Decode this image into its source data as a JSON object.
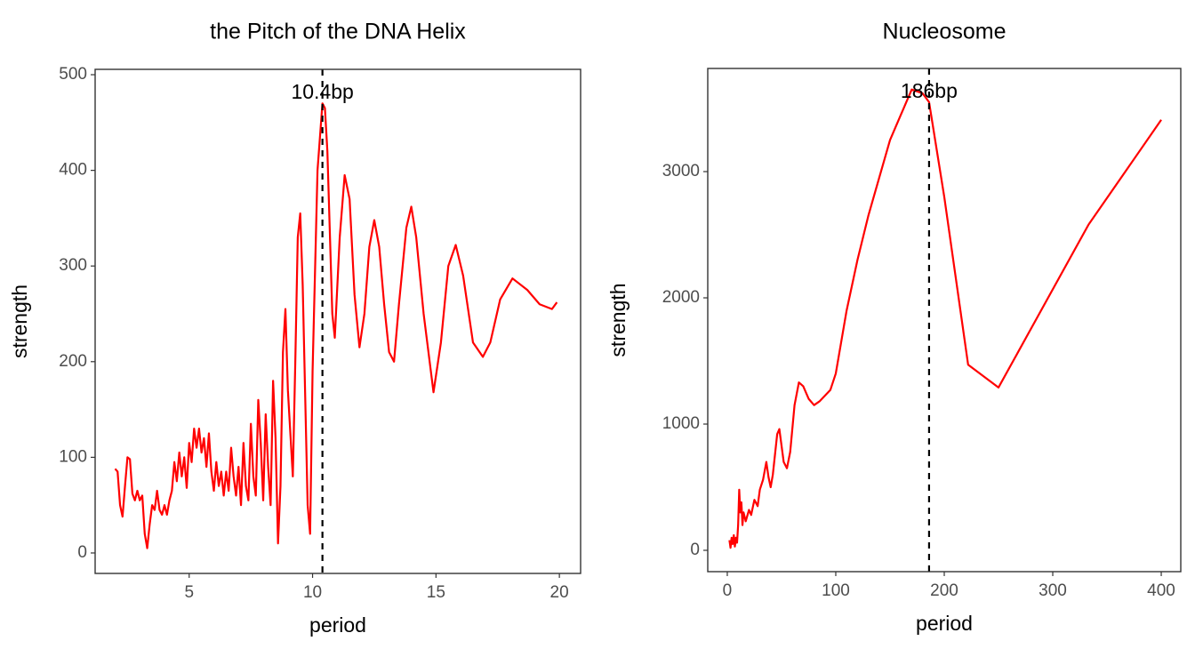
{
  "chart_data": [
    {
      "type": "line",
      "title": "the Pitch of the DNA Helix",
      "x_label": "period",
      "y_label": "strength",
      "xlim": [
        1.19,
        20.86
      ],
      "ylim": [
        -21.4,
        505.6
      ],
      "xticks": [
        5,
        10,
        15,
        20
      ],
      "yticks": [
        0,
        100,
        200,
        300,
        400,
        500
      ],
      "vline": 10.4,
      "annotation": "10.4bp",
      "series": [
        {
          "color": "#ff0000",
          "x": [
            2.0,
            2.1,
            2.2,
            2.3,
            2.4,
            2.5,
            2.6,
            2.7,
            2.8,
            2.9,
            3.0,
            3.1,
            3.2,
            3.3,
            3.4,
            3.5,
            3.6,
            3.7,
            3.8,
            3.9,
            4.0,
            4.1,
            4.2,
            4.3,
            4.4,
            4.5,
            4.6,
            4.7,
            4.8,
            4.9,
            5.0,
            5.1,
            5.2,
            5.3,
            5.4,
            5.5,
            5.6,
            5.7,
            5.8,
            5.9,
            6.0,
            6.1,
            6.2,
            6.3,
            6.4,
            6.5,
            6.6,
            6.7,
            6.8,
            6.9,
            7.0,
            7.1,
            7.2,
            7.3,
            7.4,
            7.5,
            7.6,
            7.7,
            7.8,
            7.9,
            8.0,
            8.1,
            8.2,
            8.3,
            8.4,
            8.5,
            8.6,
            8.7,
            8.8,
            8.9,
            9.0,
            9.2,
            9.3,
            9.4,
            9.5,
            9.6,
            9.8,
            9.9,
            10.0,
            10.2,
            10.4,
            10.5,
            10.6,
            10.8,
            10.9,
            11.1,
            11.3,
            11.5,
            11.7,
            11.9,
            12.1,
            12.3,
            12.5,
            12.7,
            12.9,
            13.1,
            13.3,
            13.5,
            13.8,
            14.0,
            14.2,
            14.5,
            14.9,
            15.2,
            15.5,
            15.8,
            16.1,
            16.5,
            16.9,
            17.2,
            17.6,
            18.1,
            18.7,
            19.2,
            19.7,
            19.9
          ],
          "values": [
            88,
            85,
            50,
            38,
            70,
            100,
            98,
            62,
            55,
            65,
            55,
            60,
            20,
            5,
            30,
            50,
            45,
            65,
            45,
            40,
            50,
            40,
            55,
            65,
            95,
            75,
            105,
            80,
            100,
            68,
            115,
            95,
            130,
            110,
            130,
            105,
            120,
            90,
            125,
            85,
            65,
            95,
            70,
            85,
            60,
            85,
            65,
            110,
            80,
            60,
            90,
            50,
            115,
            70,
            55,
            135,
            80,
            60,
            160,
            115,
            55,
            145,
            90,
            50,
            180,
            120,
            10,
            70,
            210,
            255,
            170,
            80,
            200,
            330,
            355,
            280,
            50,
            20,
            190,
            400,
            470,
            465,
            420,
            250,
            225,
            330,
            395,
            370,
            270,
            215,
            250,
            320,
            348,
            320,
            260,
            210,
            200,
            260,
            340,
            362,
            330,
            250,
            168,
            220,
            300,
            322,
            290,
            220,
            205,
            220,
            265,
            287,
            275,
            260,
            255,
            262
          ]
        }
      ]
    },
    {
      "type": "line",
      "title": "Nucleosome",
      "x_label": "period",
      "y_label": "strength",
      "xlim": [
        -18,
        418
      ],
      "ylim": [
        -169,
        3817
      ],
      "xticks": [
        0,
        100,
        200,
        300,
        400
      ],
      "yticks": [
        0,
        1000,
        2000,
        3000
      ],
      "vline": 186,
      "annotation": "186bp",
      "series": [
        {
          "color": "#ff0000",
          "x": [
            2,
            3,
            4,
            5,
            6,
            7,
            8,
            9,
            10,
            11,
            12,
            13,
            14,
            15,
            17,
            20,
            22,
            25,
            28,
            30,
            33,
            36,
            38,
            40,
            42,
            46,
            48,
            52,
            55,
            58,
            62,
            66,
            70,
            75,
            80,
            85,
            95,
            100,
            110,
            120,
            130,
            140,
            150,
            160,
            170,
            180,
            186,
            200,
            222,
            250,
            333,
            400
          ],
          "values": [
            80,
            20,
            100,
            50,
            120,
            30,
            100,
            60,
            200,
            480,
            300,
            380,
            200,
            300,
            230,
            320,
            280,
            400,
            350,
            480,
            560,
            700,
            580,
            500,
            600,
            920,
            960,
            700,
            650,
            780,
            1150,
            1330,
            1300,
            1200,
            1150,
            1180,
            1270,
            1400,
            1900,
            2300,
            2650,
            2950,
            3250,
            3450,
            3650,
            3620,
            3550,
            2800,
            1470,
            1290,
            2580,
            3410
          ]
        }
      ]
    }
  ]
}
